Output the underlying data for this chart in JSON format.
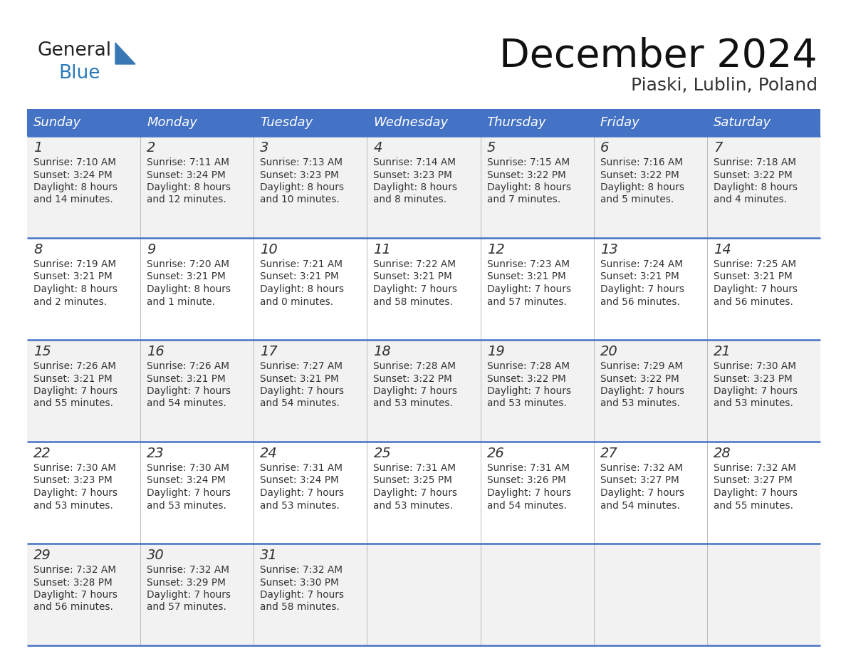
{
  "title": "December 2024",
  "subtitle": "Piaski, Lublin, Poland",
  "header_bg": "#4472C4",
  "header_text": "#FFFFFF",
  "row_bg_even": "#F2F2F2",
  "row_bg_odd": "#FFFFFF",
  "border_color": "#4472C4",
  "text_color": "#333333",
  "blue_text_color": "#2B7BB9",
  "logo_text_color": "#222222",
  "days_of_week": [
    "Sunday",
    "Monday",
    "Tuesday",
    "Wednesday",
    "Thursday",
    "Friday",
    "Saturday"
  ],
  "weeks": [
    [
      {
        "day": "1",
        "sunrise": "7:10 AM",
        "sunset": "3:24 PM",
        "dl1": "Daylight: 8 hours",
        "dl2": "and 14 minutes."
      },
      {
        "day": "2",
        "sunrise": "7:11 AM",
        "sunset": "3:24 PM",
        "dl1": "Daylight: 8 hours",
        "dl2": "and 12 minutes."
      },
      {
        "day": "3",
        "sunrise": "7:13 AM",
        "sunset": "3:23 PM",
        "dl1": "Daylight: 8 hours",
        "dl2": "and 10 minutes."
      },
      {
        "day": "4",
        "sunrise": "7:14 AM",
        "sunset": "3:23 PM",
        "dl1": "Daylight: 8 hours",
        "dl2": "and 8 minutes."
      },
      {
        "day": "5",
        "sunrise": "7:15 AM",
        "sunset": "3:22 PM",
        "dl1": "Daylight: 8 hours",
        "dl2": "and 7 minutes."
      },
      {
        "day": "6",
        "sunrise": "7:16 AM",
        "sunset": "3:22 PM",
        "dl1": "Daylight: 8 hours",
        "dl2": "and 5 minutes."
      },
      {
        "day": "7",
        "sunrise": "7:18 AM",
        "sunset": "3:22 PM",
        "dl1": "Daylight: 8 hours",
        "dl2": "and 4 minutes."
      }
    ],
    [
      {
        "day": "8",
        "sunrise": "7:19 AM",
        "sunset": "3:21 PM",
        "dl1": "Daylight: 8 hours",
        "dl2": "and 2 minutes."
      },
      {
        "day": "9",
        "sunrise": "7:20 AM",
        "sunset": "3:21 PM",
        "dl1": "Daylight: 8 hours",
        "dl2": "and 1 minute."
      },
      {
        "day": "10",
        "sunrise": "7:21 AM",
        "sunset": "3:21 PM",
        "dl1": "Daylight: 8 hours",
        "dl2": "and 0 minutes."
      },
      {
        "day": "11",
        "sunrise": "7:22 AM",
        "sunset": "3:21 PM",
        "dl1": "Daylight: 7 hours",
        "dl2": "and 58 minutes."
      },
      {
        "day": "12",
        "sunrise": "7:23 AM",
        "sunset": "3:21 PM",
        "dl1": "Daylight: 7 hours",
        "dl2": "and 57 minutes."
      },
      {
        "day": "13",
        "sunrise": "7:24 AM",
        "sunset": "3:21 PM",
        "dl1": "Daylight: 7 hours",
        "dl2": "and 56 minutes."
      },
      {
        "day": "14",
        "sunrise": "7:25 AM",
        "sunset": "3:21 PM",
        "dl1": "Daylight: 7 hours",
        "dl2": "and 56 minutes."
      }
    ],
    [
      {
        "day": "15",
        "sunrise": "7:26 AM",
        "sunset": "3:21 PM",
        "dl1": "Daylight: 7 hours",
        "dl2": "and 55 minutes."
      },
      {
        "day": "16",
        "sunrise": "7:26 AM",
        "sunset": "3:21 PM",
        "dl1": "Daylight: 7 hours",
        "dl2": "and 54 minutes."
      },
      {
        "day": "17",
        "sunrise": "7:27 AM",
        "sunset": "3:21 PM",
        "dl1": "Daylight: 7 hours",
        "dl2": "and 54 minutes."
      },
      {
        "day": "18",
        "sunrise": "7:28 AM",
        "sunset": "3:22 PM",
        "dl1": "Daylight: 7 hours",
        "dl2": "and 53 minutes."
      },
      {
        "day": "19",
        "sunrise": "7:28 AM",
        "sunset": "3:22 PM",
        "dl1": "Daylight: 7 hours",
        "dl2": "and 53 minutes."
      },
      {
        "day": "20",
        "sunrise": "7:29 AM",
        "sunset": "3:22 PM",
        "dl1": "Daylight: 7 hours",
        "dl2": "and 53 minutes."
      },
      {
        "day": "21",
        "sunrise": "7:30 AM",
        "sunset": "3:23 PM",
        "dl1": "Daylight: 7 hours",
        "dl2": "and 53 minutes."
      }
    ],
    [
      {
        "day": "22",
        "sunrise": "7:30 AM",
        "sunset": "3:23 PM",
        "dl1": "Daylight: 7 hours",
        "dl2": "and 53 minutes."
      },
      {
        "day": "23",
        "sunrise": "7:30 AM",
        "sunset": "3:24 PM",
        "dl1": "Daylight: 7 hours",
        "dl2": "and 53 minutes."
      },
      {
        "day": "24",
        "sunrise": "7:31 AM",
        "sunset": "3:24 PM",
        "dl1": "Daylight: 7 hours",
        "dl2": "and 53 minutes."
      },
      {
        "day": "25",
        "sunrise": "7:31 AM",
        "sunset": "3:25 PM",
        "dl1": "Daylight: 7 hours",
        "dl2": "and 53 minutes."
      },
      {
        "day": "26",
        "sunrise": "7:31 AM",
        "sunset": "3:26 PM",
        "dl1": "Daylight: 7 hours",
        "dl2": "and 54 minutes."
      },
      {
        "day": "27",
        "sunrise": "7:32 AM",
        "sunset": "3:27 PM",
        "dl1": "Daylight: 7 hours",
        "dl2": "and 54 minutes."
      },
      {
        "day": "28",
        "sunrise": "7:32 AM",
        "sunset": "3:27 PM",
        "dl1": "Daylight: 7 hours",
        "dl2": "and 55 minutes."
      }
    ],
    [
      {
        "day": "29",
        "sunrise": "7:32 AM",
        "sunset": "3:28 PM",
        "dl1": "Daylight: 7 hours",
        "dl2": "and 56 minutes."
      },
      {
        "day": "30",
        "sunrise": "7:32 AM",
        "sunset": "3:29 PM",
        "dl1": "Daylight: 7 hours",
        "dl2": "and 57 minutes."
      },
      {
        "day": "31",
        "sunrise": "7:32 AM",
        "sunset": "3:30 PM",
        "dl1": "Daylight: 7 hours",
        "dl2": "and 58 minutes."
      },
      null,
      null,
      null,
      null
    ]
  ]
}
